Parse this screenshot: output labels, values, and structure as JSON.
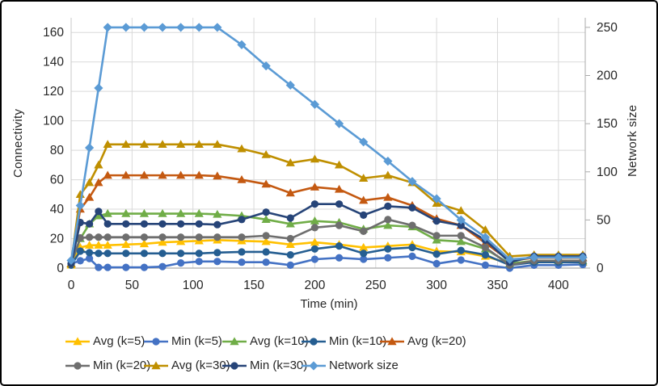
{
  "chart_data": {
    "type": "line",
    "title": "",
    "xlabel": "Time (min)",
    "grid": true,
    "legend_position": "bottom",
    "left_axis": {
      "title": "Connectivity",
      "ticks": [
        0,
        20,
        40,
        60,
        80,
        100,
        120,
        140,
        160
      ],
      "max": 170
    },
    "right_axis": {
      "title": "Network size",
      "ticks": [
        0,
        50,
        100,
        150,
        200,
        250
      ],
      "max": 260
    },
    "x_axis": {
      "ticks": [
        0,
        50,
        100,
        150,
        200,
        250,
        300,
        350,
        400
      ],
      "max": 422
    },
    "x": [
      0,
      7.5,
      15,
      22.5,
      30,
      45,
      60,
      75,
      90,
      105,
      120,
      140,
      160,
      180,
      200,
      220,
      240,
      260,
      280,
      300,
      320,
      340,
      360,
      380,
      400,
      420
    ],
    "series": [
      {
        "name": "Avg (k=5)",
        "axis": "left",
        "color": "#FFC000",
        "marker": "triangle",
        "values": [
          2,
          14,
          15.5,
          15.5,
          15.5,
          16,
          16.5,
          17.5,
          18,
          18.5,
          19,
          18.5,
          18,
          16,
          17.5,
          16,
          14,
          15,
          16,
          11.5,
          11,
          8,
          3,
          4,
          4,
          4
        ]
      },
      {
        "name": "Min (k=5)",
        "axis": "left",
        "color": "#4472C4",
        "marker": "circle",
        "values": [
          3,
          5,
          6.5,
          0.5,
          0.5,
          0.5,
          0.5,
          1,
          3.5,
          4.5,
          4.5,
          4,
          4,
          2,
          6,
          7,
          6,
          7,
          8,
          3,
          5.5,
          2,
          0,
          2,
          2,
          2.5
        ]
      },
      {
        "name": "Avg (k=10)",
        "axis": "left",
        "color": "#70AD47",
        "marker": "triangle",
        "values": [
          3,
          20,
          30,
          35.5,
          37,
          37,
          37,
          37,
          37,
          37,
          36.5,
          35.5,
          33,
          30,
          32,
          31,
          26.5,
          29,
          28,
          19,
          18,
          13,
          3,
          5,
          5,
          5
        ]
      },
      {
        "name": "Min (k=10)",
        "axis": "left",
        "color": "#255E91",
        "marker": "circle",
        "values": [
          2,
          11.5,
          10.5,
          10,
          10,
          10,
          10,
          10,
          10,
          10,
          10.5,
          11,
          11,
          9,
          13,
          15,
          10,
          13,
          14,
          9.5,
          12,
          9,
          2,
          4,
          4,
          4
        ]
      },
      {
        "name": "Avg (k=20)",
        "axis": "left",
        "color": "#C45911",
        "marker": "triangle",
        "values": [
          3,
          40,
          48,
          58,
          63,
          63,
          63,
          63,
          63,
          63,
          62.5,
          60,
          57,
          51,
          55,
          53.5,
          46,
          48,
          42.5,
          33.5,
          29,
          17,
          5,
          7,
          7,
          7
        ]
      },
      {
        "name": "Min (k=20)",
        "axis": "left",
        "color": "#6E6E6E",
        "marker": "circle",
        "values": [
          3,
          20.5,
          21,
          21,
          21,
          21,
          21,
          21,
          21,
          21,
          21,
          21,
          22,
          20,
          27.5,
          29,
          25,
          33,
          29,
          22,
          22,
          14,
          2,
          5,
          5,
          5
        ]
      },
      {
        "name": "Avg (k=30)",
        "axis": "left",
        "color": "#BF8F00",
        "marker": "triangle",
        "values": [
          3,
          50,
          58,
          70,
          84,
          84,
          84,
          84,
          84,
          84,
          84,
          81,
          77,
          71.5,
          74,
          70,
          61,
          63,
          58,
          44,
          39,
          26,
          8,
          9,
          9,
          9
        ]
      },
      {
        "name": "Min (k=30)",
        "axis": "left",
        "color": "#264478",
        "marker": "circle",
        "values": [
          3,
          31,
          30,
          38.5,
          30,
          30,
          30,
          30,
          30,
          30,
          29.5,
          33,
          38,
          34,
          43.5,
          43.5,
          36,
          42,
          41,
          32,
          29,
          19,
          4,
          8,
          8,
          8
        ]
      },
      {
        "name": "Network size",
        "axis": "right",
        "color": "#5B9BD5",
        "marker": "diamond",
        "values": [
          8,
          65,
          125,
          187,
          250,
          250,
          250,
          250,
          250,
          250,
          250,
          232,
          210,
          190,
          170,
          150,
          131,
          111,
          90,
          72,
          50,
          32,
          9,
          11,
          11,
          11
        ]
      }
    ]
  }
}
